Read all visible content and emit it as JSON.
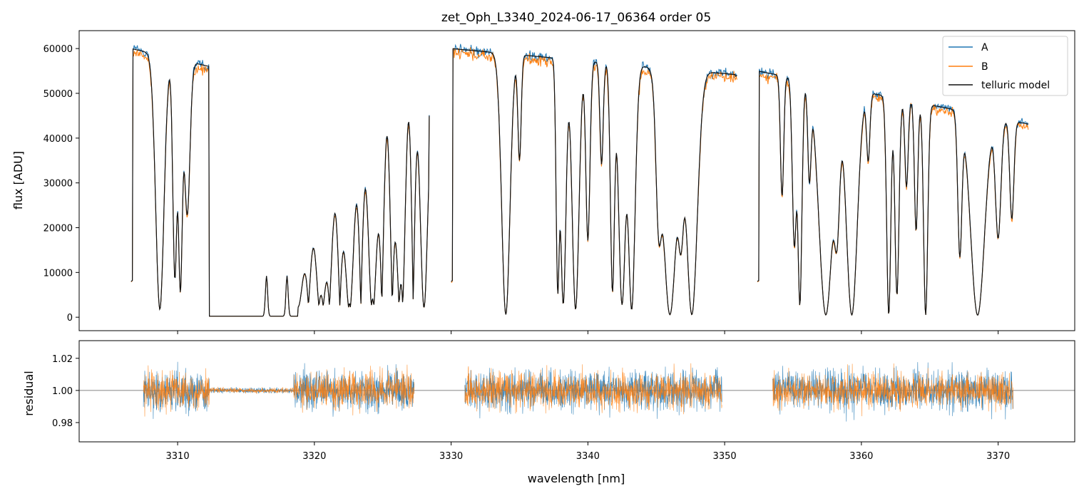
{
  "chart_data": [
    {
      "type": "line",
      "title": "zet_Oph_L3340_2024-06-17_06364  order 05",
      "xlabel": "",
      "ylabel": "flux [ADU]",
      "xlim": [
        3302.8,
        3375.6
      ],
      "ylim": [
        -3000,
        64000
      ],
      "yticks": [
        0,
        10000,
        20000,
        30000,
        40000,
        50000,
        60000
      ],
      "yticklabels": [
        "0",
        "10000",
        "20000",
        "30000",
        "40000",
        "50000",
        "60000"
      ],
      "legend_position": "top-right",
      "segments": [
        [
          3306.6,
          3328.4
        ],
        [
          3330.0,
          3350.9
        ],
        [
          3352.4,
          3372.2
        ]
      ],
      "absorption_lines": [
        [
          3308.7,
          0.97,
          0.3
        ],
        [
          3309.8,
          0.85,
          0.15
        ],
        [
          3310.2,
          0.9,
          0.15
        ],
        [
          3310.7,
          0.6,
          0.2
        ],
        [
          3334.0,
          0.99,
          0.3
        ],
        [
          3335.0,
          0.4,
          0.12
        ],
        [
          3337.8,
          0.9,
          0.12
        ],
        [
          3338.2,
          0.95,
          0.2
        ],
        [
          3339.1,
          0.97,
          0.25
        ],
        [
          3340.0,
          0.7,
          0.15
        ],
        [
          3341.0,
          0.4,
          0.12
        ],
        [
          3341.8,
          0.9,
          0.15
        ],
        [
          3342.5,
          0.95,
          0.25
        ],
        [
          3343.2,
          0.97,
          0.25
        ],
        [
          3345.2,
          0.6,
          0.2
        ],
        [
          3346.0,
          0.99,
          0.5
        ],
        [
          3346.8,
          0.6,
          0.2
        ],
        [
          3347.6,
          0.99,
          0.4
        ],
        [
          3354.2,
          0.5,
          0.12
        ],
        [
          3355.1,
          0.7,
          0.15
        ],
        [
          3355.5,
          0.95,
          0.15
        ],
        [
          3356.2,
          0.4,
          0.12
        ],
        [
          3357.4,
          0.99,
          0.5
        ],
        [
          3358.2,
          0.6,
          0.2
        ],
        [
          3359.3,
          0.99,
          0.4
        ],
        [
          3360.5,
          0.3,
          0.12
        ],
        [
          3362.0,
          0.99,
          0.15
        ],
        [
          3362.6,
          0.9,
          0.15
        ],
        [
          3363.3,
          0.4,
          0.12
        ],
        [
          3364.0,
          0.6,
          0.12
        ],
        [
          3364.7,
          0.99,
          0.15
        ],
        [
          3367.2,
          0.7,
          0.15
        ],
        [
          3368.5,
          0.99,
          0.5
        ],
        [
          3370.0,
          0.6,
          0.2
        ],
        [
          3371.0,
          0.5,
          0.15
        ]
      ],
      "dead_band": [
        3312.3,
        3318.8
      ],
      "forest_band": [
        3318.8,
        3328.4
      ],
      "series": [
        {
          "name": "A",
          "color": "#1f77b4"
        },
        {
          "name": "B",
          "color": "#ff7f0e"
        },
        {
          "name": "telluric model",
          "color": "#111111"
        }
      ]
    },
    {
      "type": "line",
      "title": "",
      "xlabel": "wavelength [nm]",
      "ylabel": "residual",
      "xlim": [
        3302.8,
        3375.6
      ],
      "ylim": [
        0.968,
        1.031
      ],
      "xticks": [
        3310,
        3320,
        3330,
        3340,
        3350,
        3360,
        3370
      ],
      "xticklabels": [
        "3310",
        "3320",
        "3330",
        "3340",
        "3350",
        "3360",
        "3370"
      ],
      "yticks": [
        0.98,
        1.0,
        1.02
      ],
      "yticklabels": [
        "0.98",
        "1.00",
        "1.02"
      ],
      "reference_line": 1.0,
      "segments": [
        [
          3307.5,
          3327.3
        ],
        [
          3331.0,
          3349.8
        ],
        [
          3353.5,
          3371.1
        ]
      ],
      "series": [
        {
          "name": "A",
          "color": "#1f77b4"
        },
        {
          "name": "B",
          "color": "#ff7f0e"
        }
      ]
    }
  ]
}
